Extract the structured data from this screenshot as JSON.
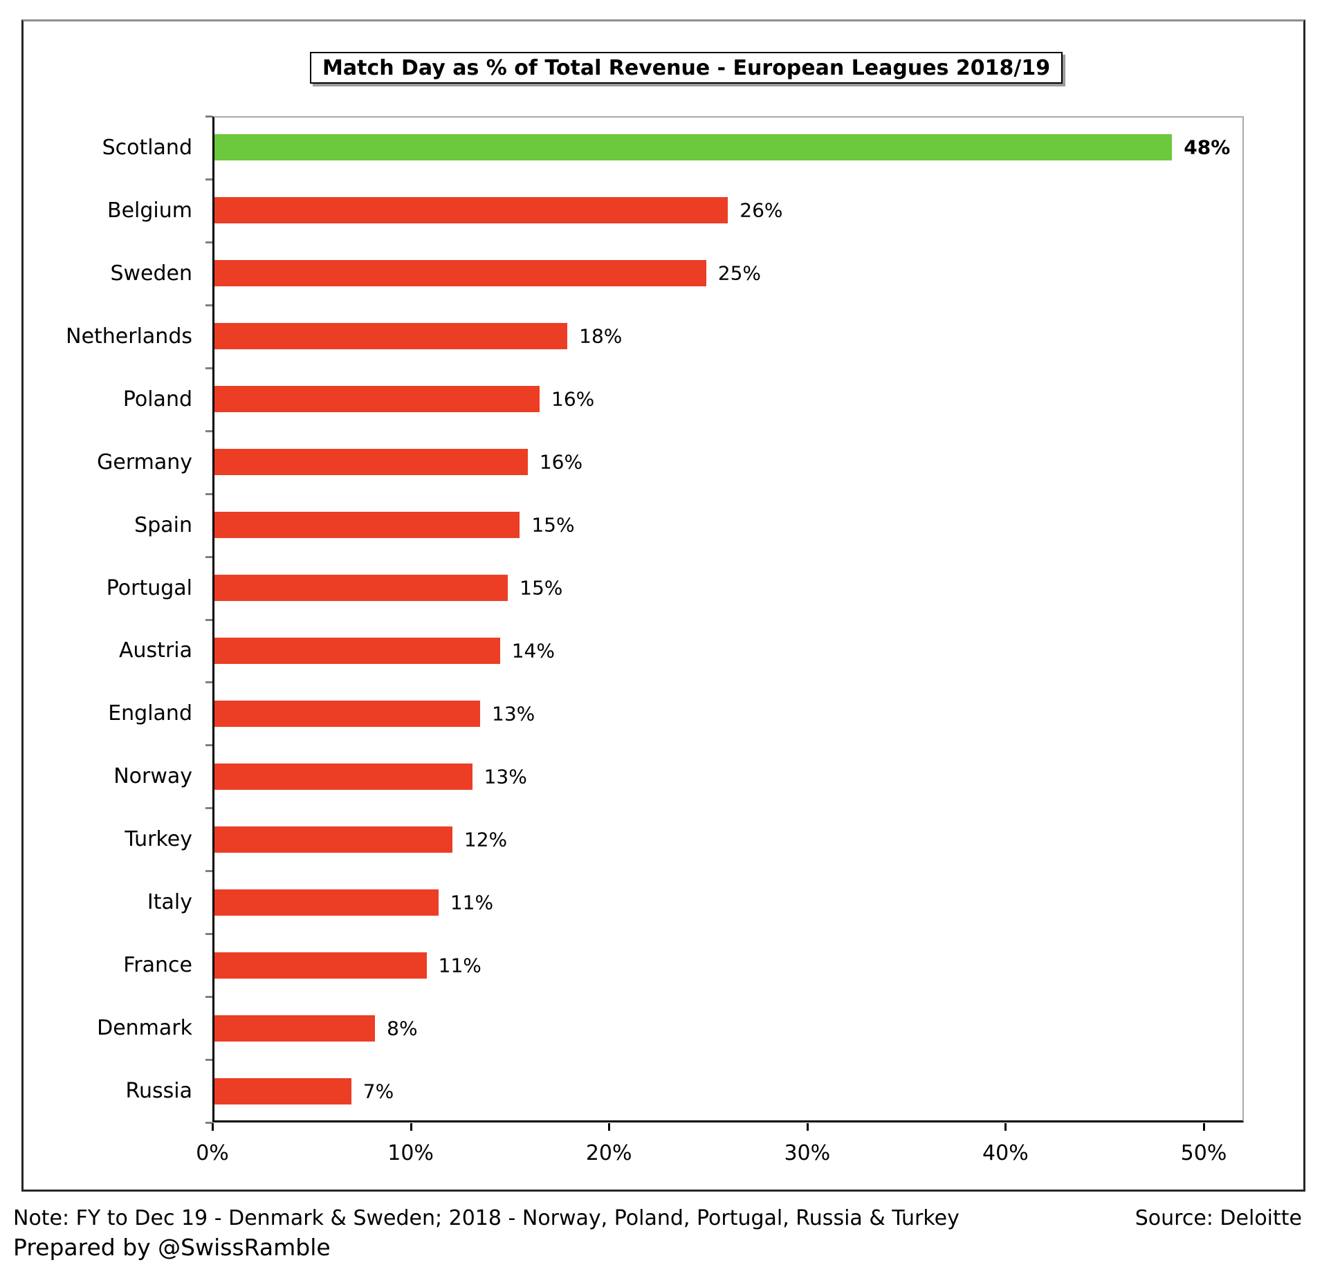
{
  "title": "Match Day as % of Total Revenue - European Leagues 2018/19",
  "footer": {
    "note": "Note: FY to Dec 19 - Denmark & Sweden; 2018 - Norway, Poland, Portugal, Russia & Turkey",
    "source": "Source: Deloitte",
    "prepared_by": "Prepared by @SwissRamble"
  },
  "colors": {
    "highlight_bar": "#6CC83C",
    "bar": "#EB3E24",
    "axis": "#000000",
    "plot_border": "#A8A8A8",
    "boundary_tick": "#808080"
  },
  "chart_data": {
    "type": "bar",
    "orientation": "horizontal",
    "title": "Match Day as % of Total Revenue - European Leagues 2018/19",
    "xlabel": "",
    "ylabel": "",
    "xlim": [
      0,
      52
    ],
    "grid": false,
    "legend": false,
    "categories": [
      "Scotland",
      "Belgium",
      "Sweden",
      "Netherlands",
      "Poland",
      "Germany",
      "Spain",
      "Portugal",
      "Austria",
      "England",
      "Norway",
      "Turkey",
      "Italy",
      "France",
      "Denmark",
      "Russia"
    ],
    "values": [
      48,
      26,
      25,
      18,
      16,
      16,
      15,
      15,
      14,
      13,
      13,
      12,
      11,
      11,
      8,
      7
    ],
    "value_labels": [
      "48%",
      "26%",
      "25%",
      "18%",
      "16%",
      "16%",
      "15%",
      "15%",
      "14%",
      "13%",
      "13%",
      "12%",
      "11%",
      "11%",
      "8%",
      "7%"
    ],
    "bar_lengths_pct": [
      48.3,
      25.9,
      24.8,
      17.8,
      16.4,
      15.8,
      15.4,
      14.8,
      14.4,
      13.4,
      13.0,
      12.0,
      11.3,
      10.7,
      8.1,
      6.9
    ],
    "highlight_index": 0,
    "x_ticks": [
      "0%",
      "10%",
      "20%",
      "30%",
      "40%",
      "50%"
    ],
    "x_tick_values": [
      0,
      10,
      20,
      30,
      40,
      50
    ]
  }
}
